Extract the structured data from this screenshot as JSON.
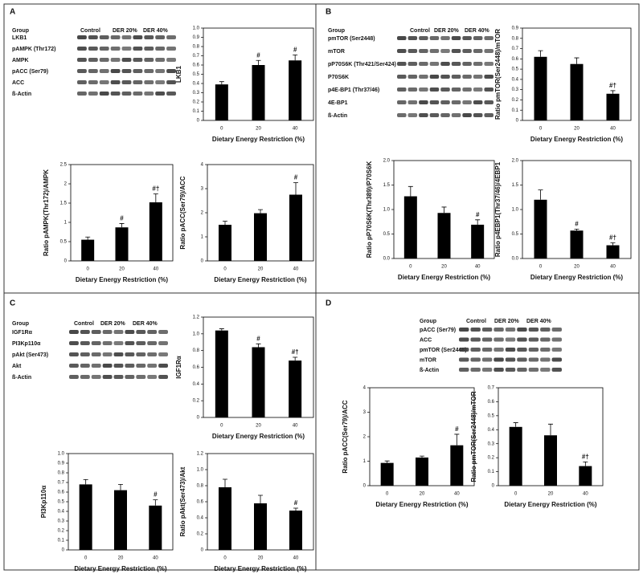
{
  "panels": [
    {
      "label": "A",
      "group": "Group",
      "columns": [
        "Control",
        "DER 20%",
        "DER 40%"
      ],
      "rows": [
        "LKB1",
        "pAMPK (Thr172)",
        "AMPK",
        "pACC (Ser79)",
        "ACC",
        "ß-Actin"
      ]
    },
    {
      "label": "B",
      "group": "Group",
      "columns": [
        "Control",
        "DER 20%",
        "DER 40%"
      ],
      "rows": [
        "pmTOR (Ser2448)",
        "mTOR",
        "pP70S6K (Thr421/Ser424)",
        "P70S6K",
        "p4E-BP1 (Thr37/46)",
        "4E-BP1",
        "ß-Actin"
      ]
    },
    {
      "label": "C",
      "group": "Group",
      "columns": [
        "Control",
        "DER 20%",
        "DER 40%"
      ],
      "rows": [
        "IGF1Rα",
        "PI3Kp110α",
        "pAkt (Ser473)",
        "Akt",
        "ß-Actin"
      ]
    },
    {
      "label": "D",
      "group": "Group",
      "columns": [
        "Control",
        "DER 20%",
        "DER 40%"
      ],
      "rows": [
        "pACC (Ser79)",
        "ACC",
        "pmTOR (Ser2448)",
        "mTOR",
        "ß-Actin"
      ]
    }
  ],
  "chart_data": [
    {
      "type": "bar",
      "ylabel": "LKB1",
      "xlabel": "Dietary Energy Restriction (%)",
      "categories": [
        "0",
        "20",
        "40"
      ],
      "values": [
        0.39,
        0.6,
        0.65
      ],
      "errors": [
        0.03,
        0.05,
        0.06
      ],
      "sig": [
        null,
        "#",
        "#"
      ],
      "color": "#000000",
      "ylim": [
        0,
        1
      ],
      "yticks": [
        0,
        0.1,
        0.2,
        0.3,
        0.4,
        0.5,
        0.6,
        0.7,
        0.8,
        0.9,
        {
          "value": 1,
          "label": "1.0"
        }
      ]
    },
    {
      "type": "bar",
      "ylabel": "Ratio pAMPK(Thr172)/AMPK",
      "xlabel": "Dietary Energy Restriction (%)",
      "categories": [
        "0",
        "20",
        "40"
      ],
      "values": [
        0.55,
        0.87,
        1.52
      ],
      "errors": [
        0.07,
        0.1,
        0.22
      ],
      "sig": [
        null,
        "#",
        "#†"
      ],
      "color": "#000000",
      "ylim": [
        0,
        2.5
      ],
      "yticks": [
        0,
        0.5,
        1,
        1.5,
        2,
        2.5
      ]
    },
    {
      "type": "bar",
      "ylabel": "Ratio pACC(Ser79)/ACC",
      "xlabel": "Dietary Energy Restriction (%)",
      "categories": [
        "0",
        "20",
        "40"
      ],
      "values": [
        1.5,
        1.98,
        2.75
      ],
      "errors": [
        0.15,
        0.15,
        0.5
      ],
      "sig": [
        null,
        null,
        "#"
      ],
      "color": "#000000",
      "ylim": [
        0,
        4
      ],
      "yticks": [
        0,
        1,
        2,
        3,
        4
      ]
    },
    {
      "type": "bar",
      "ylabel": "Ratio pmTOR(Ser2448)/mTOR",
      "xlabel": "Dietary Energy Restriction (%)",
      "categories": [
        "0",
        "20",
        "40"
      ],
      "values": [
        0.62,
        0.55,
        0.26
      ],
      "errors": [
        0.06,
        0.06,
        0.03
      ],
      "sig": [
        null,
        null,
        "#†"
      ],
      "color": "#000000",
      "ylim": [
        0,
        0.9
      ],
      "yticks": [
        0,
        0.1,
        0.2,
        0.3,
        0.4,
        0.5,
        0.6,
        0.7,
        0.8,
        0.9
      ]
    },
    {
      "type": "bar",
      "ylabel": "Ratio pP70S6K(Thr389)/P70S6K",
      "xlabel": "Dietary Energy Restriction (%)",
      "categories": [
        "0",
        "20",
        "40"
      ],
      "values": [
        1.27,
        0.93,
        0.69
      ],
      "errors": [
        0.2,
        0.12,
        0.1
      ],
      "sig": [
        null,
        null,
        "#"
      ],
      "color": "#000000",
      "ylim": [
        0,
        2
      ],
      "yticks": [
        {
          "value": 0,
          "label": "0.0"
        },
        0.5,
        {
          "value": 1,
          "label": "1.0"
        },
        1.5,
        {
          "value": 2,
          "label": "2.0"
        }
      ]
    },
    {
      "type": "bar",
      "ylabel": "Ratio p4EBP1(Thr37/46)/4EBP1",
      "xlabel": "Dietary Energy Restriction (%)",
      "categories": [
        "0",
        "20",
        "40"
      ],
      "values": [
        1.2,
        0.57,
        0.27
      ],
      "errors": [
        0.2,
        0.03,
        0.05
      ],
      "sig": [
        null,
        "#",
        "#†"
      ],
      "color": "#000000",
      "ylim": [
        0,
        2
      ],
      "yticks": [
        {
          "value": 0,
          "label": "0.0"
        },
        0.5,
        {
          "value": 1,
          "label": "1.0"
        },
        1.5,
        {
          "value": 2,
          "label": "2.0"
        }
      ]
    },
    {
      "type": "bar",
      "ylabel": "IGF1Rα",
      "xlabel": "Dietary Energy Restriction (%)",
      "categories": [
        "0",
        "20",
        "40"
      ],
      "values": [
        1.04,
        0.84,
        0.68
      ],
      "errors": [
        0.02,
        0.04,
        0.04
      ],
      "sig": [
        null,
        "#",
        "#†"
      ],
      "color": "#000000",
      "ylim": [
        0,
        1.2
      ],
      "yticks": [
        0,
        0.2,
        0.4,
        0.6,
        0.8,
        {
          "value": 1,
          "label": "1.0"
        },
        1.2
      ]
    },
    {
      "type": "bar",
      "ylabel": "PI3Kp110α",
      "xlabel": "Dietary Energy Restriction (%)",
      "categories": [
        "0",
        "20",
        "40"
      ],
      "values": [
        0.68,
        0.62,
        0.46
      ],
      "errors": [
        0.05,
        0.06,
        0.06
      ],
      "sig": [
        null,
        null,
        "#"
      ],
      "color": "#000000",
      "ylim": [
        0,
        1
      ],
      "yticks": [
        0,
        0.1,
        0.2,
        0.3,
        0.4,
        0.5,
        0.6,
        0.7,
        0.8,
        0.9,
        {
          "value": 1,
          "label": "1.0"
        }
      ]
    },
    {
      "type": "bar",
      "ylabel": "Ratio pAkt(Ser473)/Akt",
      "xlabel": "Dietary Energy Restriction (%)",
      "categories": [
        "0",
        "20",
        "40"
      ],
      "values": [
        0.78,
        0.58,
        0.49
      ],
      "errors": [
        0.1,
        0.1,
        0.03
      ],
      "sig": [
        null,
        null,
        "#"
      ],
      "color": "#000000",
      "ylim": [
        0,
        1.2
      ],
      "yticks": [
        0,
        0.2,
        0.4,
        0.6,
        0.8,
        {
          "value": 1,
          "label": "1.0"
        },
        1.2
      ]
    },
    {
      "type": "bar",
      "ylabel": "Ratio pACC(Ser79)/ACC",
      "xlabel": "Dietary Energy Restriction (%)",
      "categories": [
        "0",
        "20",
        "40"
      ],
      "values": [
        0.93,
        1.15,
        1.65
      ],
      "errors": [
        0.08,
        0.06,
        0.45
      ],
      "sig": [
        null,
        null,
        "#"
      ],
      "color": "#000000",
      "ylim": [
        0,
        4
      ],
      "yticks": [
        0,
        1,
        2,
        3,
        4
      ]
    },
    {
      "type": "bar",
      "ylabel": "Ratio pmTOR(Ser2448)/mTOR",
      "xlabel": "Dietary Energy Restriction (%)",
      "categories": [
        "0",
        "20",
        "40"
      ],
      "values": [
        0.42,
        0.36,
        0.14
      ],
      "errors": [
        0.03,
        0.08,
        0.03
      ],
      "sig": [
        null,
        null,
        "#†"
      ],
      "color": "#000000",
      "ylim": [
        0,
        0.7
      ],
      "yticks": [
        0,
        0.1,
        0.2,
        0.3,
        0.4,
        0.5,
        0.6,
        0.7
      ]
    }
  ]
}
